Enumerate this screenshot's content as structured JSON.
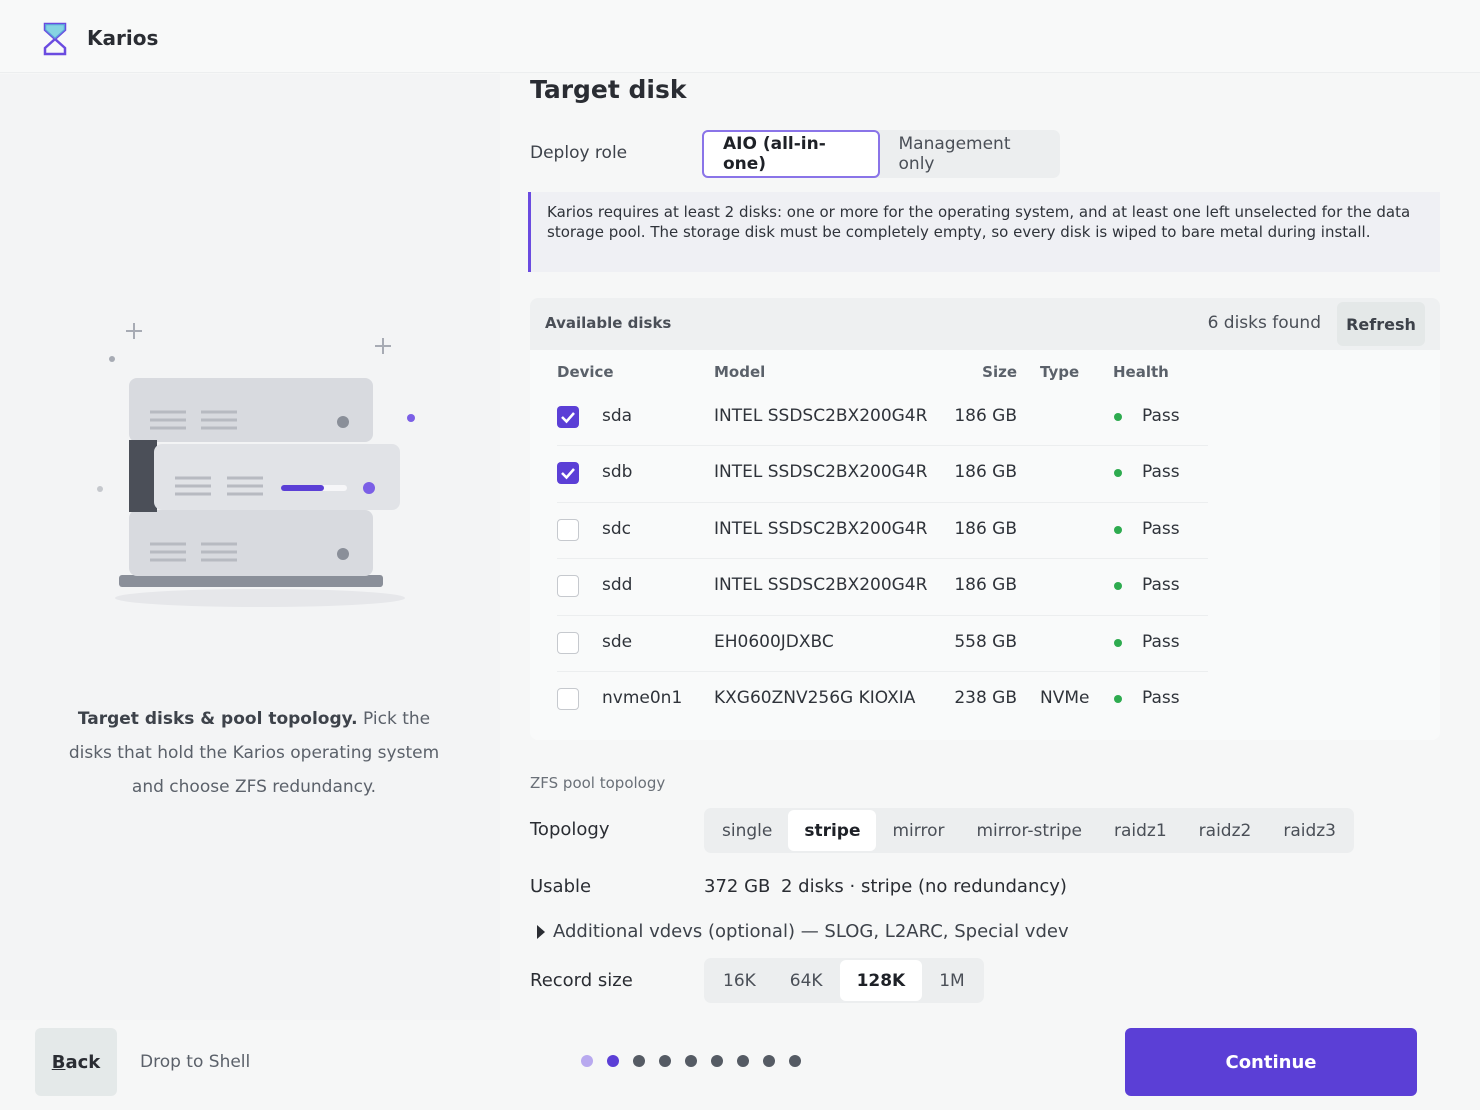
{
  "header": {
    "brand": "Karios"
  },
  "sidebar": {
    "lead": "Target disks & pool topology.",
    "text": "Pick the disks that hold the Karios operating system and choose ZFS redundancy."
  },
  "main": {
    "title": "Target disk",
    "deploy_role": {
      "label": "Deploy role",
      "options": [
        "AIO (all-in-one)",
        "Management only"
      ],
      "selected": 0
    },
    "notice": "Karios requires at least 2 disks: one or more for the operating system, and at least one left unselected for the data storage pool. The storage disk must be completely empty, so every disk is wiped to bare metal during install.",
    "disks": {
      "title": "Available disks",
      "count": "6 disks found",
      "refresh": "Refresh",
      "columns": [
        "Device",
        "Model",
        "Size",
        "Type",
        "Health"
      ],
      "rows": [
        {
          "checked": true,
          "device": "sda",
          "model": "INTEL SSDSC2BX200G4R",
          "size": "186 GB",
          "health": "Pass"
        },
        {
          "checked": true,
          "device": "sdb",
          "model": "INTEL SSDSC2BX200G4R",
          "size": "186 GB",
          "health": "Pass"
        },
        {
          "checked": false,
          "device": "sdc",
          "model": "INTEL SSDSC2BX200G4R",
          "size": "186 GB",
          "health": "Pass"
        },
        {
          "checked": false,
          "device": "sdd",
          "model": "INTEL SSDSC2BX200G4R",
          "size": "186 GB",
          "health": "Pass"
        },
        {
          "checked": false,
          "device": "sde",
          "model": "EH0600JDXBC",
          "size": "558 GB",
          "health": "Pass"
        },
        {
          "checked": false,
          "device": "nvme0n1",
          "model": "KXG60ZNV256G KIOXIA",
          "size": "238 GB",
          "type": "NVMe",
          "health": "Pass"
        }
      ]
    },
    "pool": {
      "title": "ZFS pool topology",
      "topology_label": "Topology",
      "topologies": [
        "single",
        "stripe",
        "mirror",
        "mirror-stripe",
        "raidz1",
        "raidz2",
        "raidz3"
      ],
      "topology_selected": 1,
      "usable_label": "Usable",
      "usable": "372 GB",
      "usable_note": "2 disks · stripe (no redundancy)",
      "vdevs": "Additional vdevs (optional) — SLOG, L2ARC, Special vdev",
      "record_label": "Record size",
      "record_sizes": [
        "16K",
        "64K",
        "128K",
        "1M"
      ],
      "record_selected": 2
    }
  },
  "footer": {
    "back": "Back",
    "shell": "Drop to Shell",
    "steps": 9,
    "current_step": 1,
    "continue": "Continue"
  }
}
